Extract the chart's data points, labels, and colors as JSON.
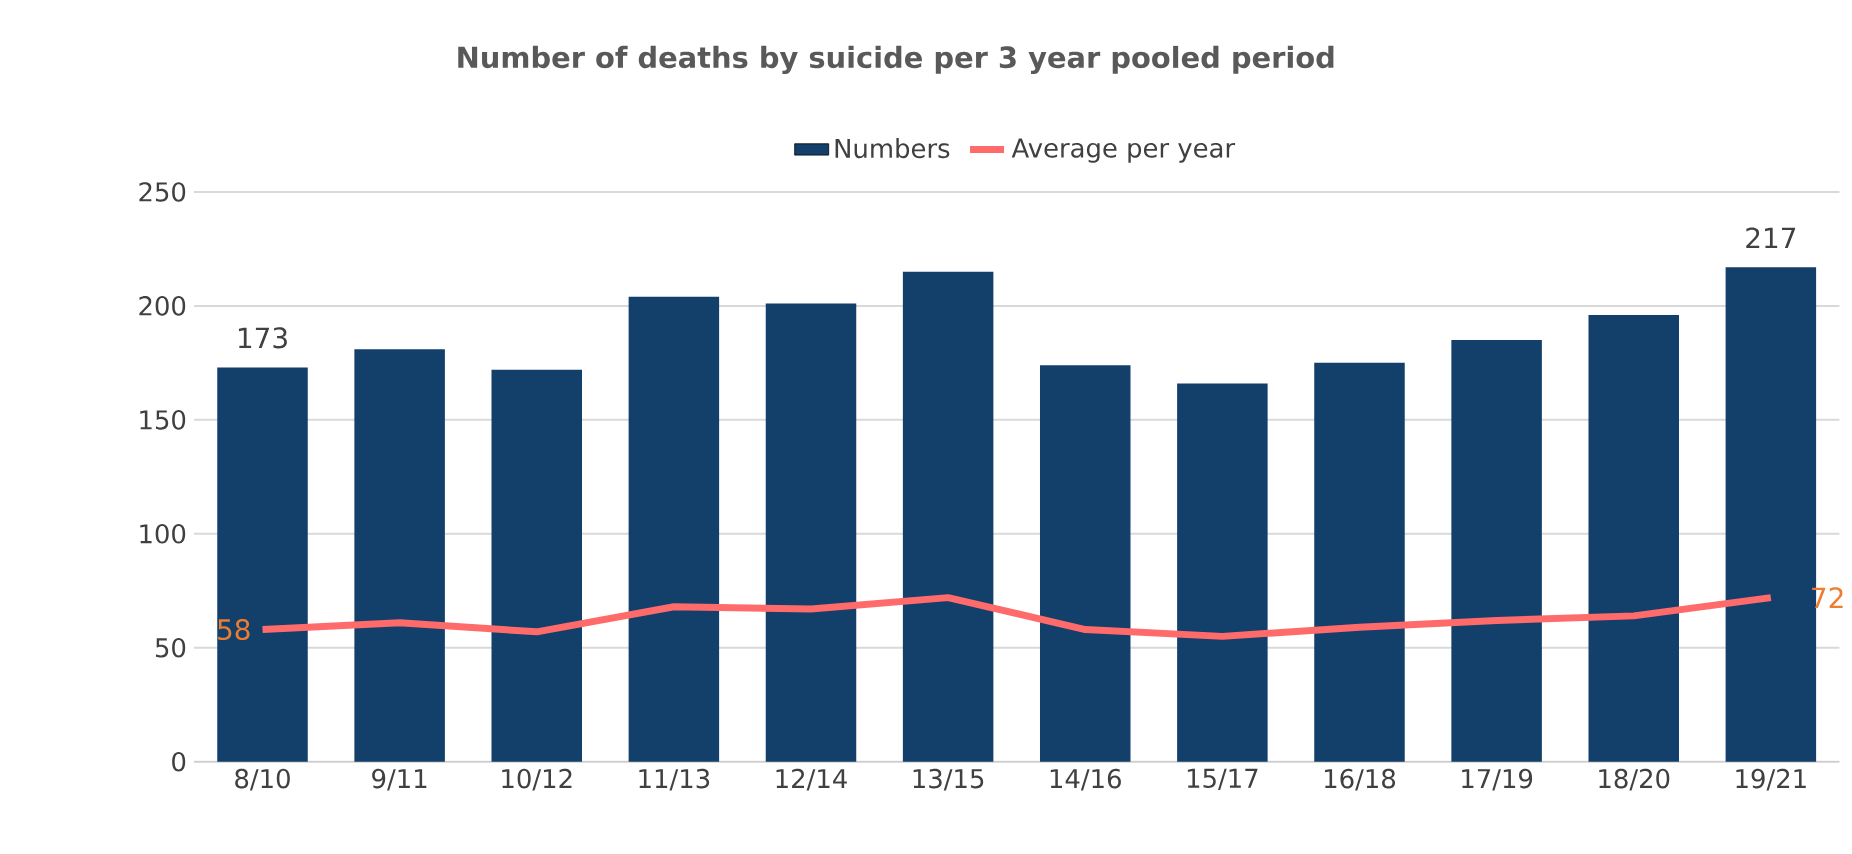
{
  "chart_data": {
    "type": "bar",
    "title": "Number of deaths by suicide per 3 year pooled period",
    "categories": [
      "8/10",
      "9/11",
      "10/12",
      "11/13",
      "12/14",
      "13/15",
      "14/16",
      "15/17",
      "16/18",
      "17/19",
      "18/20",
      "19/21"
    ],
    "series": [
      {
        "name": "Numbers",
        "color": "#133f6b",
        "values": [
          173,
          181,
          172,
          204,
          201,
          215,
          174,
          166,
          175,
          185,
          196,
          217
        ],
        "value_labels": [
          "173",
          null,
          null,
          null,
          null,
          null,
          null,
          null,
          null,
          null,
          null,
          "217"
        ]
      },
      {
        "name": "Average per year",
        "type": "line",
        "color": "#ff6b6b",
        "values": [
          58,
          61,
          57,
          68,
          67,
          72,
          58,
          55,
          59,
          62,
          64,
          72
        ],
        "value_labels": [
          "58",
          null,
          null,
          null,
          null,
          null,
          null,
          null,
          null,
          null,
          null,
          "72"
        ]
      }
    ],
    "ylim": [
      0,
      250
    ],
    "yticks": [
      0,
      50,
      100,
      150,
      200,
      250
    ],
    "grid": "y",
    "legend": "top"
  }
}
